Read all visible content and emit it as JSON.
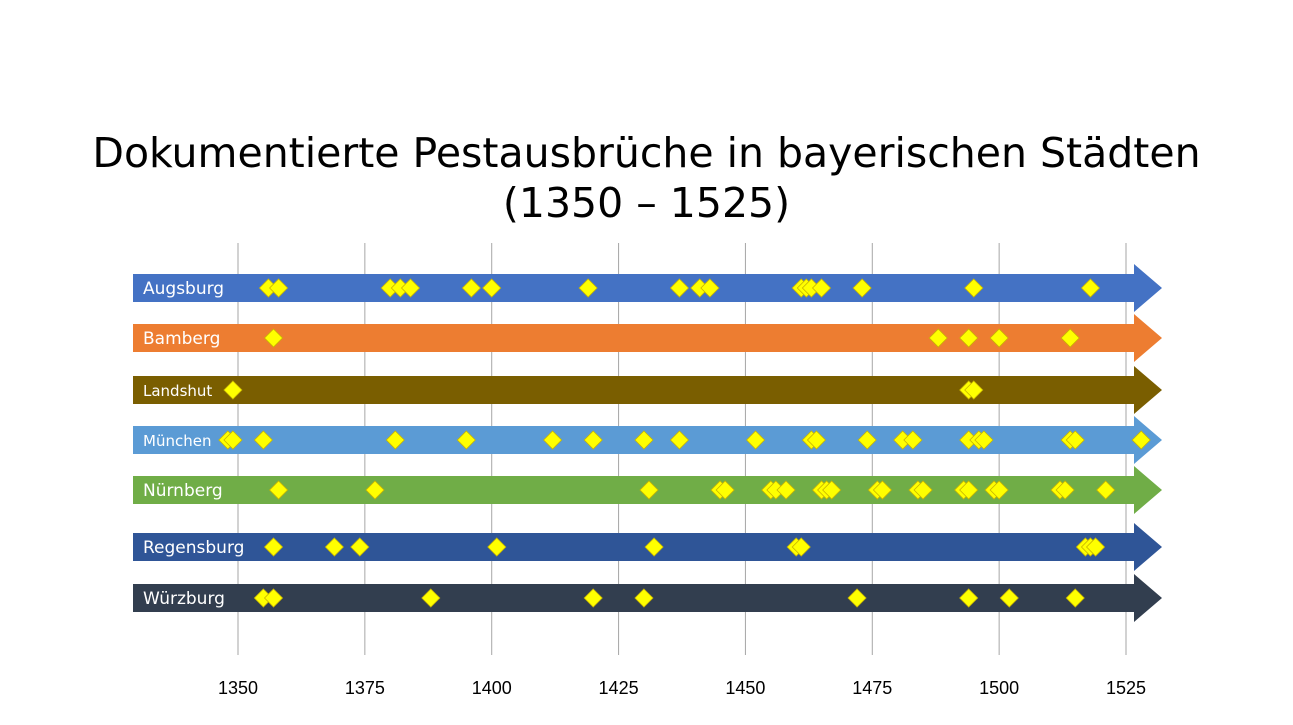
{
  "chart_data": {
    "type": "scatter",
    "title": "Dokumentierte Pestausbrüche in bayerischen Städten",
    "subtitle": "(1350 – 1525)",
    "xlabel": "",
    "ylabel": "",
    "xlim": [
      1350,
      1525
    ],
    "x_ticks": [
      "1350",
      "1375",
      "1400",
      "1425",
      "1450",
      "1475",
      "1500",
      "1525"
    ],
    "grid": true,
    "legend": "none",
    "marker": "diamond",
    "marker_color": "#ffff00",
    "series": [
      {
        "name": "Augsburg",
        "color": "#4472c4",
        "years": [
          1356,
          1358,
          1380,
          1382,
          1384,
          1396,
          1400,
          1419,
          1437,
          1441,
          1443,
          1461,
          1462,
          1463,
          1465,
          1473,
          1495,
          1518
        ]
      },
      {
        "name": "Bamberg",
        "color": "#ed7d31",
        "years": [
          1357,
          1488,
          1494,
          1500,
          1514
        ]
      },
      {
        "name": "Landshut",
        "color": "#7a5e00",
        "years": [
          1349,
          1494,
          1495
        ]
      },
      {
        "name": "München",
        "color": "#5b9bd5",
        "years": [
          1348,
          1349,
          1355,
          1381,
          1395,
          1412,
          1420,
          1430,
          1437,
          1452,
          1463,
          1464,
          1474,
          1481,
          1483,
          1494,
          1496,
          1497,
          1514,
          1515,
          1528
        ]
      },
      {
        "name": "Nürnberg",
        "color": "#70ad47",
        "years": [
          1358,
          1377,
          1431,
          1445,
          1446,
          1455,
          1456,
          1458,
          1465,
          1466,
          1467,
          1476,
          1477,
          1484,
          1485,
          1493,
          1494,
          1499,
          1500,
          1512,
          1513,
          1521
        ]
      },
      {
        "name": "Regensburg",
        "color": "#2f5597",
        "years": [
          1357,
          1369,
          1374,
          1401,
          1432,
          1460,
          1461,
          1517,
          1518,
          1519
        ]
      },
      {
        "name": "Würzburg",
        "color": "#323e4f",
        "years": [
          1355,
          1357,
          1388,
          1420,
          1430,
          1472,
          1494,
          1502,
          1515
        ]
      }
    ]
  }
}
